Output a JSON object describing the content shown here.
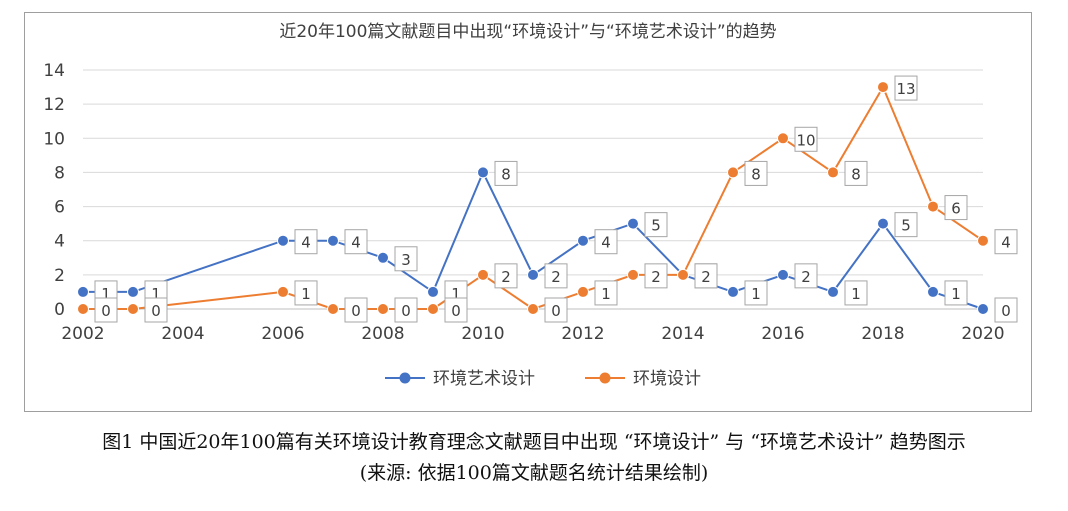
{
  "chart_data": {
    "type": "line",
    "title": "近20年100篇文献题目中出现“环境设计”与“环境艺术设计”的趋势",
    "xlabel": "",
    "ylabel": "",
    "xlim": [
      2002,
      2020
    ],
    "ylim": [
      0,
      14
    ],
    "x_ticks": [
      "2002",
      "2004",
      "2006",
      "2008",
      "2010",
      "2012",
      "2014",
      "2016",
      "2018",
      "2020"
    ],
    "y_ticks": [
      "0",
      "2",
      "4",
      "6",
      "8",
      "10",
      "12",
      "14"
    ],
    "grid": "horizontal",
    "legend_position": "bottom",
    "series": [
      {
        "name": "环境艺术设计",
        "color": "#4472C4",
        "points": [
          [
            2002,
            1
          ],
          [
            2003,
            1
          ],
          [
            2006,
            4
          ],
          [
            2007,
            4
          ],
          [
            2008,
            3
          ],
          [
            2009,
            1
          ],
          [
            2010,
            8
          ],
          [
            2011,
            2
          ],
          [
            2012,
            4
          ],
          [
            2013,
            5
          ],
          [
            2014,
            2
          ],
          [
            2015,
            1
          ],
          [
            2016,
            2
          ],
          [
            2017,
            1
          ],
          [
            2018,
            5
          ],
          [
            2019,
            1
          ],
          [
            2020,
            0
          ]
        ]
      },
      {
        "name": "环境设计",
        "color": "#ED7D31",
        "points": [
          [
            2002,
            0
          ],
          [
            2003,
            0
          ],
          [
            2006,
            1
          ],
          [
            2007,
            0
          ],
          [
            2008,
            0
          ],
          [
            2009,
            0
          ],
          [
            2010,
            2
          ],
          [
            2011,
            0
          ],
          [
            2012,
            1
          ],
          [
            2013,
            2
          ],
          [
            2014,
            2
          ],
          [
            2015,
            8
          ],
          [
            2016,
            10
          ],
          [
            2017,
            8
          ],
          [
            2018,
            13
          ],
          [
            2019,
            6
          ],
          [
            2020,
            4
          ]
        ]
      }
    ]
  },
  "caption": {
    "line1": "图1 中国近20年100篇有关环境设计教育理念文献题目中出现 “环境设计” 与 “环境艺术设计” 趋势图示",
    "line2": "(来源: 依据100篇文献题名统计结果绘制)"
  }
}
